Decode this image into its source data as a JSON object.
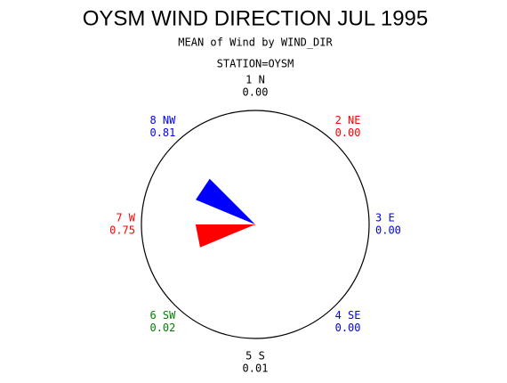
{
  "chart_data": {
    "type": "rose",
    "title": "OYSM WIND DIRECTION JUL 1995",
    "subtitle": "MEAN of Wind by WIND_DIR",
    "annotation": "STATION=OYSM",
    "categories": [
      "1 N",
      "2 NE",
      "3 E",
      "4 SE",
      "5 S",
      "6 SW",
      "7 W",
      "8 NW"
    ],
    "values": [
      0,
      0,
      0,
      0,
      0.01,
      0.02,
      0.75,
      0.81
    ],
    "value_labels": [
      "0.00",
      "0.00",
      "0.00",
      "0.00",
      "0.01",
      "0.02",
      "0.75",
      "0.81"
    ],
    "colors": [
      "#000000",
      "#ff0000",
      "#0000ff",
      "#0000ff",
      "#000000",
      "#008000",
      "#ff0000",
      "#0000ff"
    ],
    "rlim": [
      0,
      1.43
    ]
  }
}
